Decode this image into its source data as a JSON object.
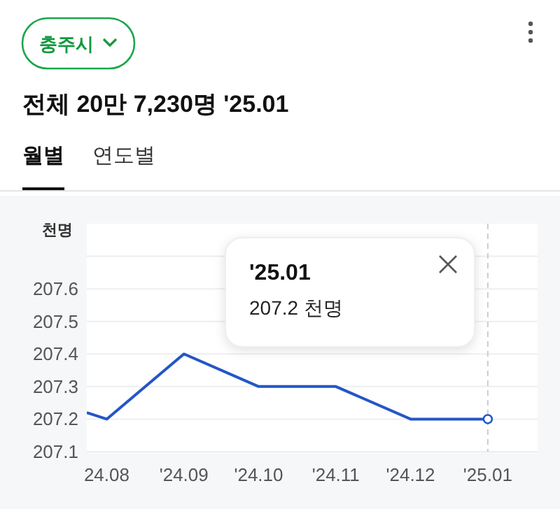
{
  "chart_data": {
    "type": "line",
    "title": "충주시",
    "subtitle": "전체 20만 7,230명 '25.01",
    "ylabel": "천명",
    "annotations": [
      "월별",
      "연도별",
      "'25.01\n207.2 천명"
    ],
    "series": [
      {
        "color": "#2456c6",
        "x": [
          "2024-07-24",
          "2024-08",
          "2024-09",
          "2024-10",
          "2024-11",
          "2024-12",
          "2025-01"
        ],
        "values": [
          207.22,
          207.2,
          207.4,
          207.3,
          207.3,
          207.2,
          207.2
        ]
      }
    ],
    "xlim": [
      "2024-07-24",
      "2025-01-21"
    ],
    "xticks": [
      {
        "value": "2024-08",
        "label": "24.08"
      },
      {
        "value": "2024-09",
        "label": "'24.09"
      },
      {
        "value": "2024-10",
        "label": "'24.10"
      },
      {
        "value": "2024-11",
        "label": "'24.11"
      },
      {
        "value": "2024-12",
        "label": "'24.12"
      },
      {
        "value": "2025-01",
        "label": "'25.01"
      }
    ],
    "ylim": [
      207.1,
      207.8
    ],
    "yticks": [
      207.1,
      207.2,
      207.3,
      207.4,
      207.5,
      207.6,
      {
        "value": 207.7,
        "label": null
      }
    ],
    "grid": "y",
    "line_style": "solid",
    "ref_lines": [
      {
        "axis": "x",
        "value": "2025-01",
        "label": null,
        "color": "#cccccc",
        "line_style": "dashed"
      }
    ]
  }
}
